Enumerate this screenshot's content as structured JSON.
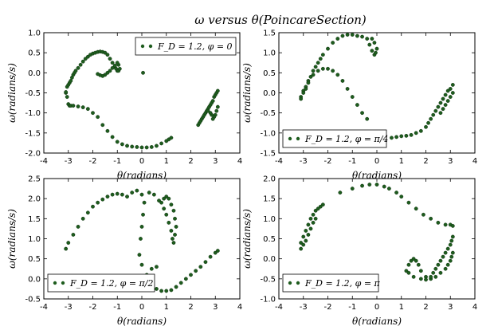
{
  "suptitle": "ω versus θ(PoincareSection)",
  "chart_data": [
    {
      "type": "scatter",
      "xlabel": "θ(radians)",
      "ylabel": "ω(radians/s)",
      "xlim": [
        -4,
        4
      ],
      "ylim": [
        -2.0,
        1.0
      ],
      "xticks": [
        -4,
        -3,
        -2,
        -1,
        0,
        1,
        2,
        3,
        4
      ],
      "yticks": [
        -2.0,
        -1.5,
        -1.0,
        -0.5,
        0.0,
        0.5,
        1.0
      ],
      "legend": "F_D = 1.2, φ = 0",
      "legend_placement": "top-right",
      "color": "#1e5c1e",
      "x": [
        -3.1,
        -3.05,
        -3.0,
        -2.95,
        -2.9,
        -2.8,
        -2.6,
        -2.4,
        -2.2,
        -2.0,
        -1.8,
        -1.6,
        -1.4,
        -1.2,
        -1.0,
        -0.8,
        -0.6,
        -0.4,
        -0.2,
        0.0,
        0.2,
        0.4,
        0.6,
        0.8,
        1.0,
        1.1,
        1.2,
        -3.1,
        -3.05,
        -3.0,
        -2.95,
        -2.9,
        -2.85,
        -2.8,
        -2.75,
        -2.7,
        -2.6,
        -2.5,
        -2.4,
        -2.3,
        -2.2,
        -2.1,
        -2.0,
        -1.9,
        -1.8,
        -1.7,
        -1.6,
        -1.5,
        -1.4,
        -1.3,
        -1.2,
        -1.1,
        -1.05,
        -1.0,
        -0.95,
        -0.9,
        -0.95,
        -1.0,
        -1.1,
        -1.2,
        -1.3,
        -1.4,
        -1.5,
        -1.6,
        -1.7,
        -1.8,
        0.05,
        2.3,
        2.35,
        2.4,
        2.45,
        2.5,
        2.55,
        2.6,
        2.65,
        2.7,
        2.75,
        2.8,
        2.85,
        2.9,
        2.95,
        3.0,
        3.05,
        3.1,
        3.1,
        3.05,
        3.0,
        2.95,
        2.9,
        2.85,
        2.8,
        2.7
      ],
      "y": [
        -0.5,
        -0.6,
        -0.78,
        -0.82,
        -0.82,
        -0.82,
        -0.84,
        -0.86,
        -0.9,
        -1.0,
        -1.1,
        -1.3,
        -1.45,
        -1.6,
        -1.72,
        -1.78,
        -1.82,
        -1.84,
        -1.85,
        -1.86,
        -1.86,
        -1.85,
        -1.82,
        -1.76,
        -1.7,
        -1.66,
        -1.62,
        -0.48,
        -0.35,
        -0.3,
        -0.25,
        -0.2,
        -0.12,
        -0.05,
        0.0,
        0.05,
        0.12,
        0.2,
        0.28,
        0.35,
        0.4,
        0.45,
        0.48,
        0.5,
        0.52,
        0.53,
        0.52,
        0.5,
        0.45,
        0.35,
        0.25,
        0.15,
        0.1,
        0.05,
        0.05,
        0.1,
        0.2,
        0.25,
        0.18,
        0.12,
        0.05,
        0.0,
        -0.05,
        -0.08,
        -0.06,
        -0.03,
        0.0,
        -1.3,
        -1.25,
        -1.2,
        -1.15,
        -1.1,
        -1.05,
        -1.0,
        -0.95,
        -0.9,
        -0.85,
        -0.8,
        -0.75,
        -0.7,
        -0.6,
        -0.55,
        -0.5,
        -0.45,
        -0.85,
        -0.95,
        -1.05,
        -1.1,
        -1.15,
        -1.05,
        -1.0,
        -0.95
      ]
    },
    {
      "type": "scatter",
      "xlabel": "θ(radians)",
      "ylabel": "ω(radians/s)",
      "xlim": [
        -4,
        4
      ],
      "ylim": [
        -1.5,
        1.5
      ],
      "xticks": [
        -4,
        -3,
        -2,
        -1,
        0,
        1,
        2,
        3,
        4
      ],
      "yticks": [
        -1.5,
        -1.0,
        -0.5,
        0.0,
        0.5,
        1.0,
        1.5
      ],
      "legend": "F_D = 1.2, φ = π/4",
      "legend_placement": "bottom-left",
      "color": "#1e5c1e",
      "x": [
        -3.1,
        -3.0,
        -2.9,
        -2.8,
        -2.6,
        -2.4,
        -2.2,
        -2.0,
        -1.8,
        -1.6,
        -1.4,
        -1.2,
        -1.0,
        -0.8,
        -0.6,
        -0.4,
        -3.1,
        -3.0,
        -2.9,
        -2.8,
        -2.7,
        -2.6,
        -2.5,
        -2.4,
        -2.3,
        -2.2,
        -2.0,
        -1.8,
        -1.6,
        -1.4,
        -1.2,
        -1.0,
        -0.8,
        -0.6,
        -0.4,
        -0.3,
        -0.2,
        -0.1,
        -0.05,
        0.0,
        -0.1,
        -0.2,
        0.6,
        0.8,
        1.0,
        1.2,
        1.4,
        1.6,
        1.8,
        2.0,
        2.1,
        2.2,
        2.3,
        2.4,
        2.5,
        2.6,
        2.7,
        2.8,
        2.9,
        3.0,
        3.1,
        3.1,
        3.0,
        2.9,
        2.8,
        2.7,
        2.6
      ],
      "y": [
        -0.1,
        0.05,
        0.15,
        0.3,
        0.45,
        0.55,
        0.6,
        0.6,
        0.55,
        0.45,
        0.3,
        0.1,
        -0.1,
        -0.3,
        -0.5,
        -0.65,
        -0.15,
        0.0,
        0.1,
        0.25,
        0.4,
        0.55,
        0.65,
        0.75,
        0.85,
        0.95,
        1.1,
        1.25,
        1.35,
        1.42,
        1.45,
        1.45,
        1.42,
        1.4,
        1.35,
        1.2,
        1.05,
        0.95,
        1.0,
        1.1,
        1.25,
        1.35,
        -1.12,
        -1.1,
        -1.08,
        -1.07,
        -1.05,
        -1.0,
        -0.95,
        -0.85,
        -0.75,
        -0.65,
        -0.55,
        -0.45,
        -0.35,
        -0.25,
        -0.15,
        -0.05,
        0.05,
        0.1,
        0.2,
        0.0,
        -0.1,
        -0.2,
        -0.3,
        -0.4,
        -0.5
      ]
    },
    {
      "type": "scatter",
      "xlabel": "θ(radians)",
      "ylabel": "ω(radians/s)",
      "xlim": [
        -4,
        4
      ],
      "ylim": [
        -0.5,
        2.5
      ],
      "xticks": [
        -4,
        -3,
        -2,
        -1,
        0,
        1,
        2,
        3,
        4
      ],
      "yticks": [
        -0.5,
        0.0,
        0.5,
        1.0,
        1.5,
        2.0,
        2.5
      ],
      "legend": "F_D = 1.2, φ = π/2",
      "legend_placement": "bottom-left",
      "color": "#1e5c1e",
      "x": [
        -3.1,
        -3.0,
        -2.8,
        -2.6,
        -2.4,
        -2.2,
        -2.0,
        -1.8,
        -1.6,
        -1.4,
        -1.2,
        -1.0,
        -0.8,
        -0.6,
        -0.4,
        -0.2,
        0.0,
        0.1,
        0.05,
        0.0,
        -0.05,
        -0.1,
        0.0,
        0.3,
        0.5,
        0.7,
        0.9,
        1.0,
        1.1,
        1.2,
        1.25,
        1.3,
        1.35,
        1.4,
        1.35,
        1.3,
        1.2,
        1.1,
        1.0,
        0.9,
        0.8,
        0.6,
        0.4,
        0.2,
        0.1,
        0.2,
        0.4,
        0.6,
        0.8,
        1.0,
        1.2,
        1.4,
        1.6,
        1.8,
        2.0,
        2.2,
        2.4,
        2.6,
        2.8,
        3.0,
        3.1
      ],
      "y": [
        0.75,
        0.9,
        1.1,
        1.3,
        1.5,
        1.65,
        1.8,
        1.9,
        1.98,
        2.05,
        2.1,
        2.12,
        2.1,
        2.05,
        2.15,
        2.2,
        2.1,
        1.9,
        1.6,
        1.3,
        1.0,
        0.6,
        0.35,
        2.15,
        2.1,
        1.95,
        1.75,
        1.6,
        1.4,
        1.2,
        1.0,
        0.9,
        1.1,
        1.3,
        1.5,
        1.7,
        1.85,
        2.0,
        2.05,
        2.0,
        1.9,
        0.3,
        0.25,
        0.1,
        0.0,
        -0.1,
        -0.2,
        -0.25,
        -0.3,
        -0.3,
        -0.28,
        -0.2,
        -0.1,
        0.0,
        0.1,
        0.2,
        0.3,
        0.42,
        0.55,
        0.65,
        0.7
      ]
    },
    {
      "type": "scatter",
      "xlabel": "θ(radians)",
      "ylabel": "ω(radians/s)",
      "xlim": [
        -4,
        4
      ],
      "ylim": [
        -1.0,
        2.0
      ],
      "xticks": [
        -4,
        -3,
        -2,
        -1,
        0,
        1,
        2,
        3,
        4
      ],
      "yticks": [
        -1.0,
        -0.5,
        0.0,
        0.5,
        1.0,
        1.5,
        2.0
      ],
      "legend": "F_D = 1.2, φ = π",
      "legend_placement": "bottom-left",
      "color": "#1e5c1e",
      "x": [
        -3.1,
        -3.0,
        -2.9,
        -2.8,
        -2.7,
        -2.6,
        -2.5,
        -2.4,
        -2.3,
        -2.2,
        -3.1,
        -3.0,
        -2.9,
        -2.8,
        -2.7,
        -2.6,
        -2.5,
        -1.5,
        -1.0,
        -0.6,
        -0.3,
        0.0,
        0.3,
        0.5,
        0.8,
        1.0,
        1.3,
        1.6,
        1.9,
        2.2,
        2.5,
        2.8,
        3.0,
        3.1,
        1.2,
        1.3,
        1.4,
        1.5,
        1.6,
        1.7,
        1.8,
        2.0,
        2.2,
        2.4,
        2.6,
        2.8,
        2.9,
        3.0,
        3.05,
        3.1,
        3.1,
        3.05,
        3.0,
        2.9,
        2.8,
        2.7,
        2.6,
        2.5,
        2.4,
        2.3,
        2.2,
        2.0,
        1.8,
        1.5,
        1.3
      ],
      "y": [
        0.4,
        0.55,
        0.7,
        0.85,
        1.0,
        1.1,
        1.2,
        1.25,
        1.3,
        1.35,
        0.25,
        0.35,
        0.45,
        0.6,
        0.75,
        0.9,
        1.0,
        1.65,
        1.75,
        1.82,
        1.85,
        1.85,
        1.8,
        1.75,
        1.65,
        1.55,
        1.4,
        1.25,
        1.1,
        1.0,
        0.9,
        0.85,
        0.85,
        0.82,
        -0.3,
        -0.15,
        -0.05,
        0.0,
        -0.05,
        -0.15,
        -0.3,
        -0.45,
        -0.5,
        -0.45,
        -0.35,
        -0.25,
        -0.15,
        -0.05,
        0.05,
        0.15,
        0.55,
        0.45,
        0.35,
        0.25,
        0.15,
        0.05,
        -0.05,
        -0.15,
        -0.25,
        -0.35,
        -0.45,
        -0.52,
        -0.5,
        -0.45,
        -0.35
      ]
    }
  ]
}
